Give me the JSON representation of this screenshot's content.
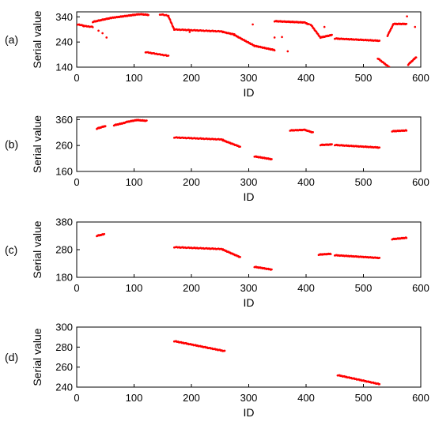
{
  "figure": {
    "marker_color": "#ff0000"
  },
  "chart_data": [
    {
      "type": "scatter",
      "panel_label": "(a)",
      "xlabel": "ID",
      "ylabel": "Serial value",
      "xlim": [
        0,
        600
      ],
      "ylim": [
        140,
        360
      ],
      "xticks": [
        0,
        100,
        200,
        300,
        400,
        500,
        600
      ],
      "yticks": [
        140,
        240,
        340
      ],
      "grid": false,
      "segments": [
        {
          "x0": 0,
          "x1": 12,
          "y0": 310,
          "y1": 306,
          "step": 1.5
        },
        {
          "x0": 12,
          "x1": 28,
          "y0": 304,
          "y1": 300,
          "step": 1.5
        },
        {
          "x0": 28,
          "x1": 60,
          "y0": 320,
          "y1": 336,
          "step": 1
        },
        {
          "x0": 60,
          "x1": 110,
          "y0": 336,
          "y1": 351,
          "step": 1
        },
        {
          "x0": 110,
          "x1": 125,
          "y0": 351,
          "y1": 348,
          "step": 1
        },
        {
          "x0": 145,
          "x1": 160,
          "y0": 350,
          "y1": 345,
          "step": 2
        },
        {
          "x0": 160,
          "x1": 170,
          "y0": 342,
          "y1": 290,
          "step": 1
        },
        {
          "x0": 120,
          "x1": 160,
          "y0": 200,
          "y1": 185,
          "step": 1.5
        },
        {
          "x0": 170,
          "x1": 255,
          "y0": 290,
          "y1": 282,
          "step": 1.5
        },
        {
          "x0": 255,
          "x1": 275,
          "y0": 280,
          "y1": 270,
          "step": 1
        },
        {
          "x0": 275,
          "x1": 310,
          "y0": 268,
          "y1": 225,
          "step": 1
        },
        {
          "x0": 310,
          "x1": 345,
          "y0": 225,
          "y1": 208,
          "step": 1
        },
        {
          "x0": 345,
          "x1": 395,
          "y0": 323,
          "y1": 318,
          "step": 1
        },
        {
          "x0": 395,
          "x1": 405,
          "y0": 320,
          "y1": 310,
          "step": 1
        },
        {
          "x0": 408,
          "x1": 425,
          "y0": 310,
          "y1": 258,
          "step": 1
        },
        {
          "x0": 425,
          "x1": 445,
          "y0": 258,
          "y1": 268,
          "step": 1
        },
        {
          "x0": 450,
          "x1": 528,
          "y0": 254,
          "y1": 245,
          "step": 1.2
        },
        {
          "x0": 525,
          "x1": 545,
          "y0": 175,
          "y1": 140,
          "step": 1
        },
        {
          "x0": 542,
          "x1": 552,
          "y0": 265,
          "y1": 310,
          "step": 1
        },
        {
          "x0": 552,
          "x1": 575,
          "y0": 312,
          "y1": 312,
          "step": 1
        },
        {
          "x0": 578,
          "x1": 592,
          "y0": 150,
          "y1": 180,
          "step": 1
        }
      ],
      "points": [
        {
          "x": 38,
          "y": 285
        },
        {
          "x": 45,
          "y": 275
        },
        {
          "x": 52,
          "y": 258
        },
        {
          "x": 150,
          "y": 350
        },
        {
          "x": 197,
          "y": 280
        },
        {
          "x": 307,
          "y": 310
        },
        {
          "x": 345,
          "y": 258
        },
        {
          "x": 358,
          "y": 260
        },
        {
          "x": 368,
          "y": 203
        },
        {
          "x": 432,
          "y": 300
        },
        {
          "x": 576,
          "y": 342
        },
        {
          "x": 590,
          "y": 300
        }
      ]
    },
    {
      "type": "scatter",
      "panel_label": "(b)",
      "xlabel": "ID",
      "ylabel": "Serial value",
      "xlim": [
        0,
        600
      ],
      "ylim": [
        160,
        370
      ],
      "xticks": [
        0,
        100,
        200,
        300,
        400,
        500,
        600
      ],
      "yticks": [
        160,
        260,
        360
      ],
      "grid": false,
      "segments": [
        {
          "x0": 35,
          "x1": 50,
          "y0": 325,
          "y1": 335,
          "step": 1
        },
        {
          "x0": 65,
          "x1": 85,
          "y0": 338,
          "y1": 348,
          "step": 1
        },
        {
          "x0": 85,
          "x1": 105,
          "y0": 350,
          "y1": 358,
          "step": 1
        },
        {
          "x0": 105,
          "x1": 122,
          "y0": 358,
          "y1": 355,
          "step": 1
        },
        {
          "x0": 170,
          "x1": 255,
          "y0": 291,
          "y1": 283,
          "step": 1.5
        },
        {
          "x0": 255,
          "x1": 285,
          "y0": 280,
          "y1": 255,
          "step": 1
        },
        {
          "x0": 310,
          "x1": 340,
          "y0": 218,
          "y1": 207,
          "step": 1
        },
        {
          "x0": 372,
          "x1": 395,
          "y0": 318,
          "y1": 320,
          "step": 1
        },
        {
          "x0": 395,
          "x1": 412,
          "y0": 322,
          "y1": 310,
          "step": 1
        },
        {
          "x0": 425,
          "x1": 445,
          "y0": 262,
          "y1": 264,
          "step": 1
        },
        {
          "x0": 450,
          "x1": 528,
          "y0": 262,
          "y1": 252,
          "step": 1.2
        },
        {
          "x0": 550,
          "x1": 575,
          "y0": 315,
          "y1": 318,
          "step": 1
        }
      ],
      "points": []
    },
    {
      "type": "scatter",
      "panel_label": "(c)",
      "xlabel": "ID",
      "ylabel": "Serial value",
      "xlim": [
        0,
        600
      ],
      "ylim": [
        180,
        380
      ],
      "xticks": [
        0,
        100,
        200,
        300,
        400,
        500,
        600
      ],
      "yticks": [
        180,
        280,
        380
      ],
      "grid": false,
      "segments": [
        {
          "x0": 35,
          "x1": 48,
          "y0": 330,
          "y1": 336,
          "step": 1
        },
        {
          "x0": 170,
          "x1": 255,
          "y0": 289,
          "y1": 282,
          "step": 1.5
        },
        {
          "x0": 255,
          "x1": 285,
          "y0": 280,
          "y1": 253,
          "step": 1
        },
        {
          "x0": 310,
          "x1": 340,
          "y0": 218,
          "y1": 208,
          "step": 1
        },
        {
          "x0": 422,
          "x1": 443,
          "y0": 262,
          "y1": 265,
          "step": 1
        },
        {
          "x0": 450,
          "x1": 528,
          "y0": 260,
          "y1": 250,
          "step": 1.2
        },
        {
          "x0": 550,
          "x1": 575,
          "y0": 318,
          "y1": 323,
          "step": 1
        }
      ],
      "points": []
    },
    {
      "type": "scatter",
      "panel_label": "(d)",
      "xlabel": "ID",
      "ylabel": "Serial value",
      "xlim": [
        0,
        600
      ],
      "ylim": [
        240,
        300
      ],
      "xticks": [
        0,
        100,
        200,
        300,
        400,
        500,
        600
      ],
      "yticks": [
        240,
        260,
        280,
        300
      ],
      "grid": false,
      "segments": [
        {
          "x0": 170,
          "x1": 258,
          "y0": 286,
          "y1": 276,
          "step": 1.2
        },
        {
          "x0": 455,
          "x1": 528,
          "y0": 252,
          "y1": 243,
          "step": 1.2
        }
      ],
      "points": []
    }
  ]
}
